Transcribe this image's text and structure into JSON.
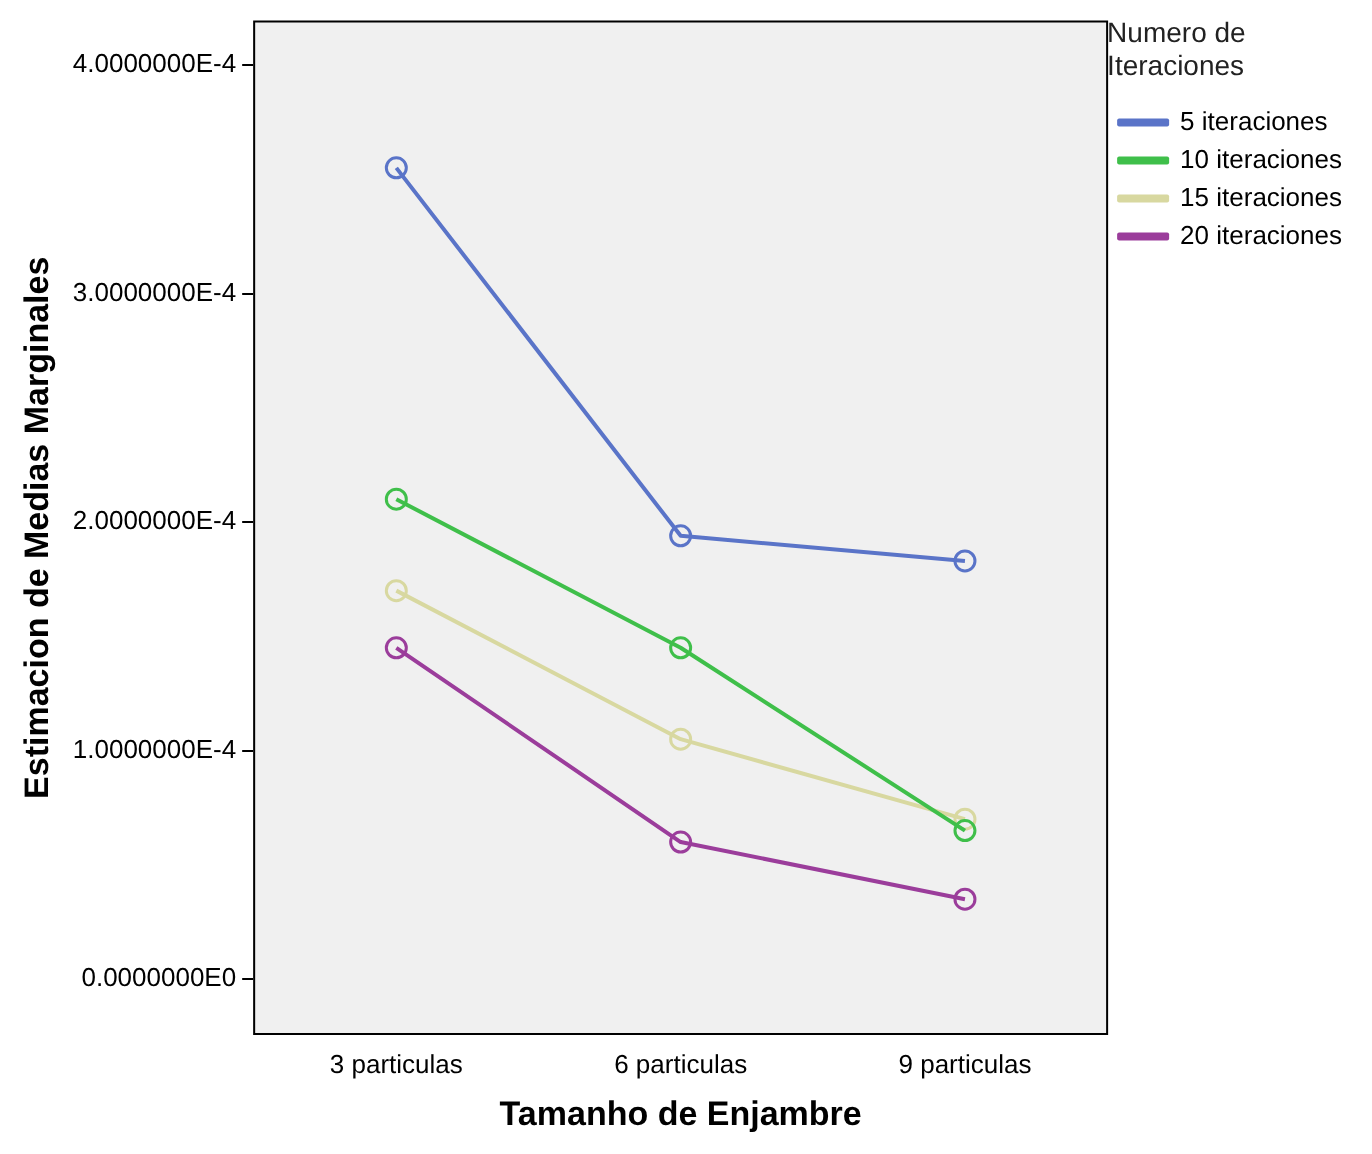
{
  "chart_data": {
    "type": "line",
    "xlabel": "Tamanho de Enjambre",
    "ylabel": "Estimacion de Medias Marginales",
    "legend_title": "Numero de Iteraciones",
    "legend": "right",
    "marker": "circle",
    "grid": false,
    "categories": [
      "3 particulas",
      "6 particulas",
      "9 particulas"
    ],
    "series": [
      {
        "name": "5 iteraciones",
        "color": "#5a74c8",
        "values": [
          0.000355,
          0.000194,
          0.000183
        ]
      },
      {
        "name": "10 iteraciones",
        "color": "#3fbf4a",
        "values": [
          0.00021,
          0.000145,
          6.5e-05
        ]
      },
      {
        "name": "15 iteraciones",
        "color": "#d8d8a0",
        "values": [
          0.00017,
          0.000105,
          7e-05
        ]
      },
      {
        "name": "20 iteraciones",
        "color": "#9b3d9b",
        "values": [
          0.000145,
          6e-05,
          3.5e-05
        ]
      }
    ],
    "ylim": [
      -2.4e-05,
      0.000419
    ],
    "yticks": [
      {
        "value": 0,
        "label": "0.0000000E0"
      },
      {
        "value": 0.0001,
        "label": "1.0000000E-4"
      },
      {
        "value": 0.0002,
        "label": "2.0000000E-4"
      },
      {
        "value": 0.0003,
        "label": "3.0000000E-4"
      },
      {
        "value": 0.0004,
        "label": "4.0000000E-4"
      }
    ]
  }
}
